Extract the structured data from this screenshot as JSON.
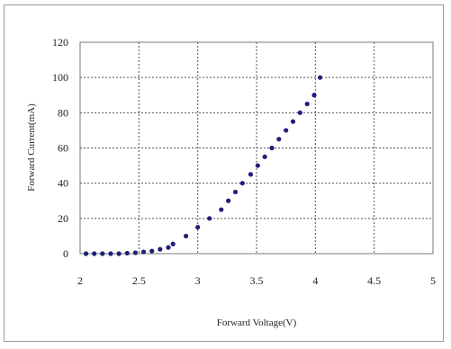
{
  "chart_data": {
    "type": "scatter",
    "title": "",
    "xlabel": "Forward Voltage(V)",
    "ylabel": "Forward Current(mA)",
    "xlim": [
      2,
      5
    ],
    "ylim": [
      0,
      120
    ],
    "x_ticks": [
      "2",
      "2.5",
      "3",
      "3.5",
      "4",
      "4.5",
      "5"
    ],
    "y_ticks": [
      "0",
      "20",
      "40",
      "60",
      "80",
      "100",
      "120"
    ],
    "grid": true,
    "legend": "none",
    "marker_color": "#1f1f7a",
    "series": [
      {
        "x": [
          2.05,
          2.12,
          2.19,
          2.26,
          2.33,
          2.4,
          2.47,
          2.54,
          2.61,
          2.68,
          2.75,
          2.79,
          2.9,
          3.0,
          3.1,
          3.2,
          3.26,
          3.32,
          3.38,
          3.45,
          3.51,
          3.57,
          3.63,
          3.69,
          3.75,
          3.81,
          3.87,
          3.93,
          3.99,
          4.04
        ],
        "y": [
          0,
          0,
          0,
          0,
          0,
          0.3,
          0.5,
          1,
          1.5,
          2.5,
          3.5,
          5.5,
          10,
          15,
          20,
          25,
          30,
          35,
          40,
          45,
          50,
          55,
          60,
          65,
          70,
          75,
          80,
          85,
          90,
          100
        ]
      }
    ]
  }
}
